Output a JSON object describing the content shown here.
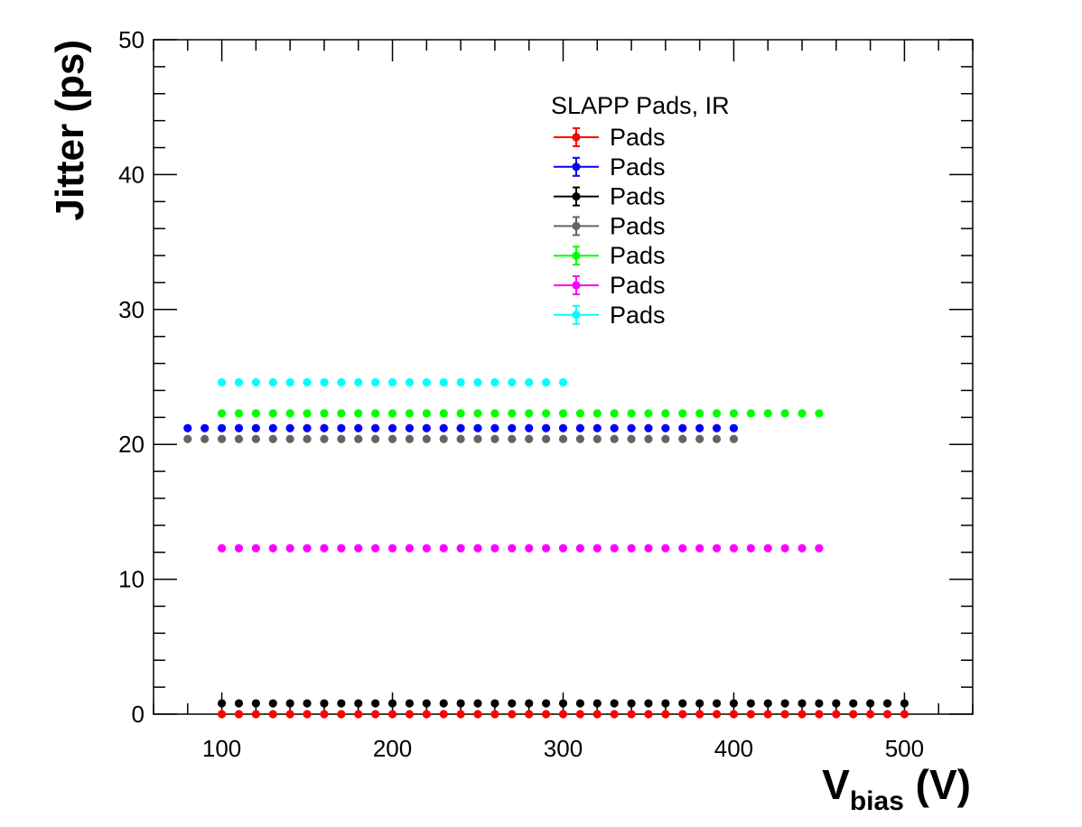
{
  "chart_data": {
    "type": "scatter",
    "title": "",
    "xlabel": {
      "main": "V",
      "sub": "bias",
      "unit": " (V)"
    },
    "ylabel": "Jitter (ps)",
    "xlim": [
      60,
      540
    ],
    "ylim": [
      0,
      50
    ],
    "x_ticks": [
      100,
      200,
      300,
      400,
      500
    ],
    "y_ticks": [
      0,
      10,
      20,
      30,
      40,
      50
    ],
    "grid": false,
    "legend": {
      "title": "SLAPP Pads, IR",
      "placement": "top-center"
    },
    "series": [
      {
        "name": "Pads",
        "color": "#ff0000",
        "x_start": 100,
        "x_end": 500,
        "x_step": 10,
        "y": 0.0
      },
      {
        "name": "Pads",
        "color": "#0000ff",
        "x_start": 80,
        "x_end": 400,
        "x_step": 10,
        "y": 21.2
      },
      {
        "name": "Pads",
        "color": "#000000",
        "x_start": 100,
        "x_end": 500,
        "x_step": 10,
        "y": 0.8
      },
      {
        "name": "Pads",
        "color": "#646464",
        "x_start": 80,
        "x_end": 400,
        "x_step": 10,
        "y": 20.4
      },
      {
        "name": "Pads",
        "color": "#00ff00",
        "x_start": 100,
        "x_end": 450,
        "x_step": 10,
        "y": 22.3
      },
      {
        "name": "Pads",
        "color": "#ff00ff",
        "x_start": 100,
        "x_end": 450,
        "x_step": 10,
        "y": 12.3
      },
      {
        "name": "Pads",
        "color": "#00ffff",
        "x_start": 100,
        "x_end": 300,
        "x_step": 10,
        "y": 24.6
      }
    ]
  }
}
